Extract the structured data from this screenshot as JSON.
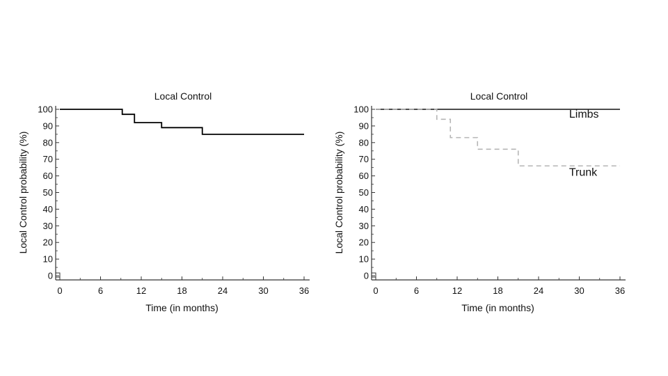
{
  "chart_data": [
    {
      "type": "line",
      "title": "Local Control",
      "xlabel": "Time (in months)",
      "ylabel": "Local Control probability (%)",
      "xlim": [
        0,
        36
      ],
      "ylim": [
        0,
        100
      ],
      "xticks": [
        0,
        6,
        12,
        18,
        24,
        30,
        36
      ],
      "yticks": [
        0,
        10,
        20,
        30,
        40,
        50,
        60,
        70,
        80,
        90,
        100
      ],
      "step": true,
      "grid": false,
      "series": [
        {
          "color": "#000000",
          "dashed": false,
          "x": [
            0,
            9.2,
            11.0,
            15.0,
            21.0,
            36
          ],
          "y": [
            100,
            97,
            92,
            89,
            85,
            85
          ]
        }
      ],
      "annotations": []
    },
    {
      "type": "line",
      "title": "Local Control",
      "xlabel": "Time (in months)",
      "ylabel": "Local Control probability (%)",
      "xlim": [
        0,
        36
      ],
      "ylim": [
        0,
        100
      ],
      "xticks": [
        0,
        6,
        12,
        18,
        24,
        30,
        36
      ],
      "yticks": [
        0,
        10,
        20,
        30,
        40,
        50,
        60,
        70,
        80,
        90,
        100
      ],
      "step": true,
      "grid": false,
      "series": [
        {
          "name": "Limbs",
          "color": "#333333",
          "dashed": false,
          "x": [
            0,
            36
          ],
          "y": [
            100,
            100
          ]
        },
        {
          "name": "Trunk",
          "color": "#b5b5b5",
          "dashed": true,
          "x": [
            0,
            9.0,
            11.0,
            15.0,
            21.0,
            36
          ],
          "y": [
            100,
            94,
            83,
            76,
            66,
            66
          ]
        }
      ],
      "annotations": [
        {
          "text": "Limbs",
          "x": 28.5,
          "y": 95
        },
        {
          "text": "Trunk",
          "x": 28.5,
          "y": 60
        }
      ]
    }
  ]
}
